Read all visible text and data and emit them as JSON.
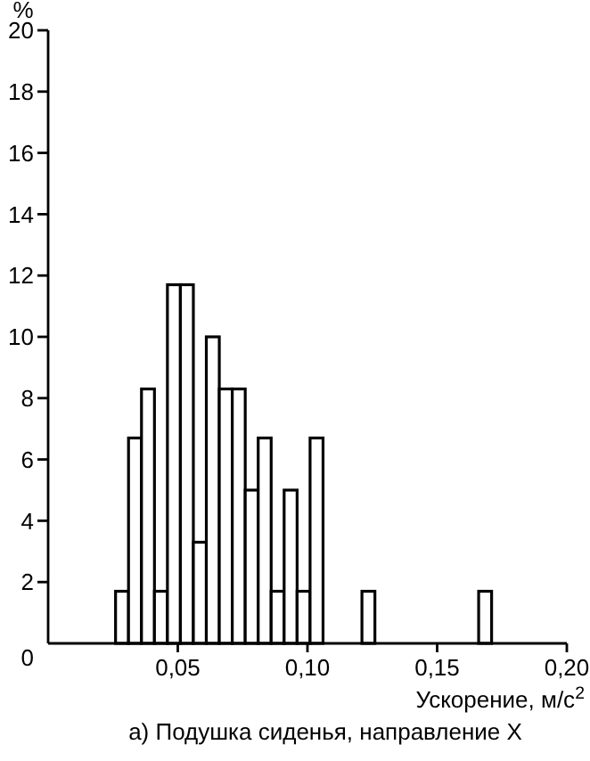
{
  "chart_data": {
    "type": "histogram",
    "ylabel": "%",
    "xlabel": "Ускорение, м/с$^{2}$",
    "title": "а) Подушка сиденья, направление X",
    "bins": [
      0.026,
      0.031,
      0.036,
      0.041,
      0.046,
      0.051,
      0.056,
      0.061,
      0.066,
      0.071,
      0.076,
      0.081,
      0.086,
      0.091,
      0.096,
      0.101,
      0.106,
      0.111,
      0.116,
      0.121,
      0.126,
      0.131,
      0.136,
      0.141,
      0.146,
      0.151,
      0.156,
      0.161,
      0.166,
      0.171
    ],
    "values": [
      1.7,
      6.7,
      8.3,
      1.7,
      11.7,
      11.7,
      3.3,
      10,
      8.3,
      8.3,
      5,
      6.7,
      1.7,
      5,
      1.7,
      6.7,
      0,
      0,
      0,
      1.7,
      0,
      0,
      0,
      0,
      0,
      0,
      0,
      0,
      1.7
    ],
    "color": "#ffffff",
    "xlim": [
      0,
      0.2
    ],
    "xticks": [
      {
        "value": 0.05,
        "label": "0,05"
      },
      {
        "value": 0.1,
        "label": "0,10"
      },
      {
        "value": 0.15,
        "label": "0,15"
      },
      {
        "value": 0.2,
        "label": "0,20"
      }
    ],
    "ylim": [
      0,
      20
    ],
    "yticks": [
      0,
      2,
      4,
      6,
      8,
      10,
      12,
      14,
      16,
      18,
      20
    ],
    "grid": false
  }
}
